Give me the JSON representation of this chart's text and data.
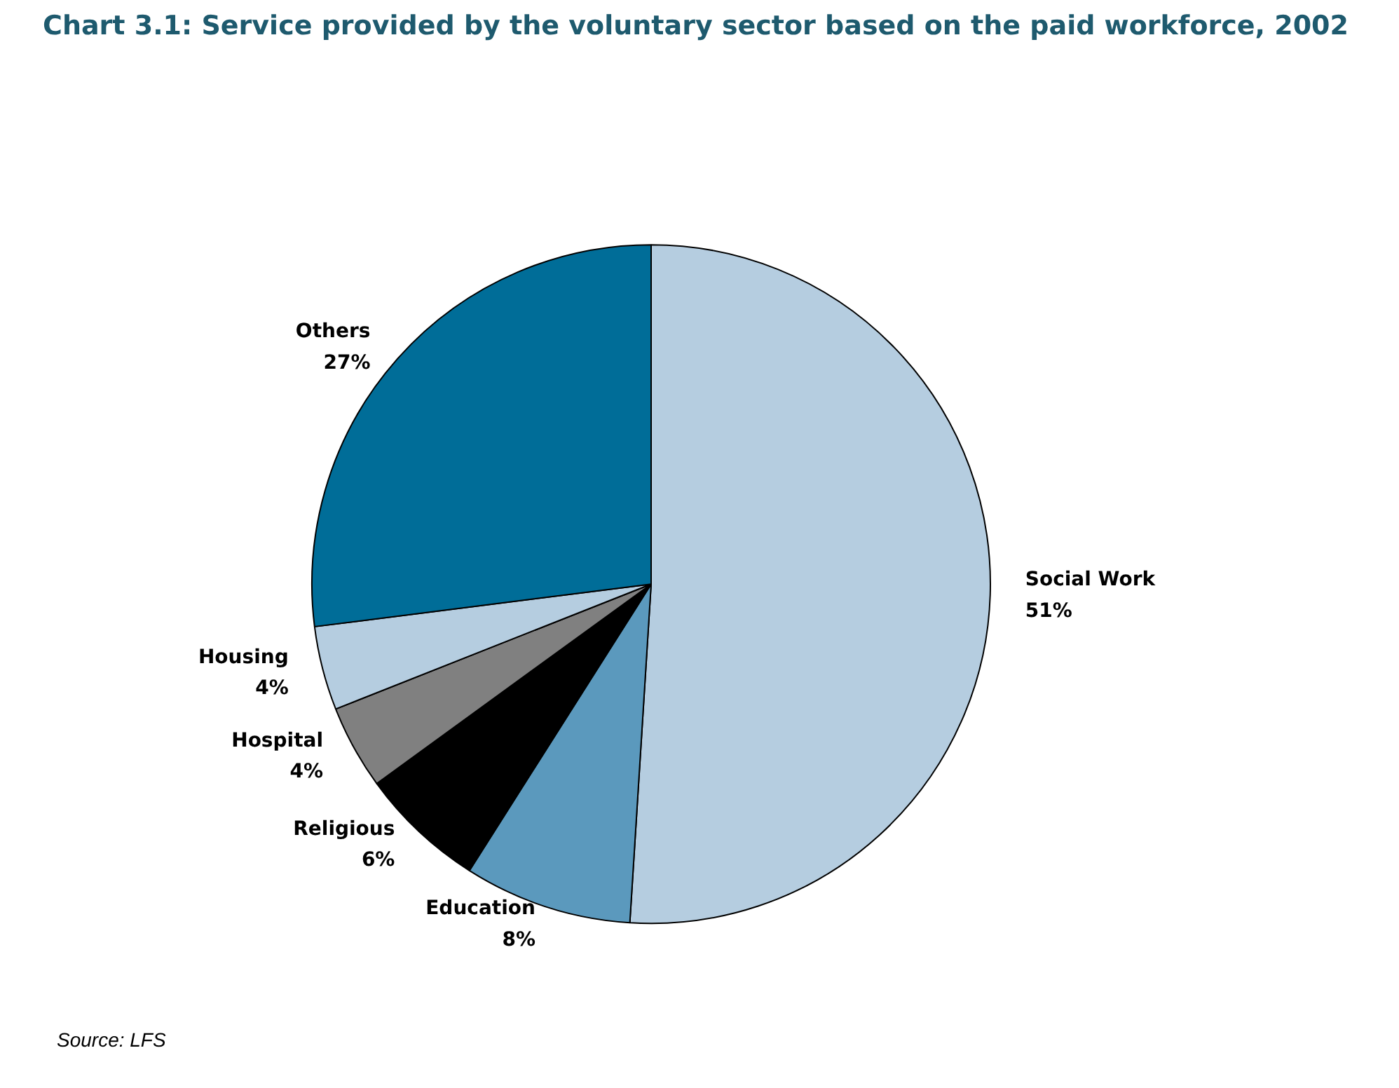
{
  "chart_data": {
    "type": "pie",
    "title": "Chart 3.1: Service provided by the voluntary sector based on the paid workforce, 2002",
    "categories": [
      "Social Work",
      "Education",
      "Religious",
      "Hospital",
      "Housing",
      "Others"
    ],
    "values": [
      51,
      8,
      6,
      4,
      4,
      27
    ],
    "value_labels": [
      "51%",
      "8%",
      "6%",
      "4%",
      "4%",
      "27%"
    ],
    "colors": [
      "#b5cde0",
      "#5b99bd",
      "#000000",
      "#808080",
      "#b5cde0",
      "#006d98"
    ],
    "annotations": [
      "Source: LFS"
    ]
  }
}
